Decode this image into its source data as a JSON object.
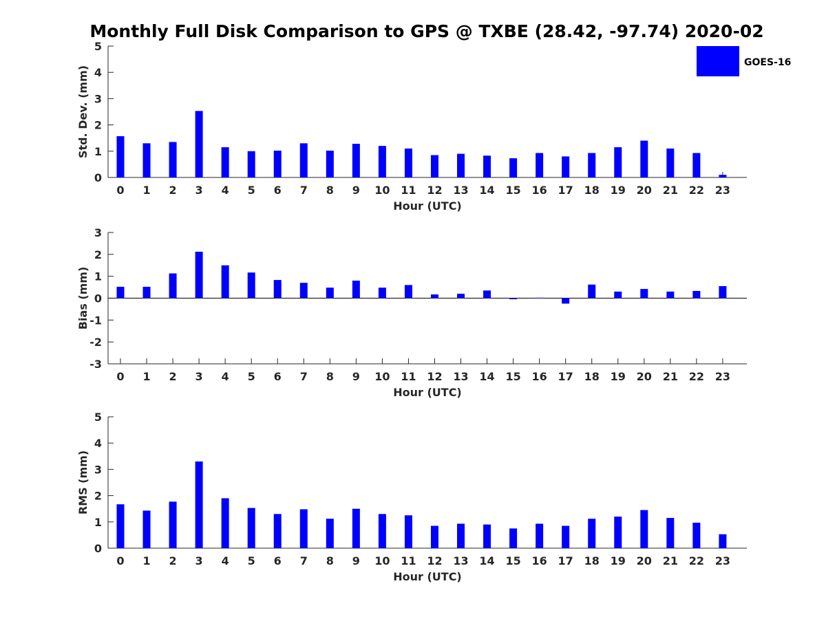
{
  "colors": {
    "series": "#0000ff",
    "axis": "#262626",
    "background": "#ffffff"
  },
  "chart_data": {
    "type": "bar",
    "title": "Monthly Full Disk Comparison to GPS @ TXBE (28.42, -97.74) 2020-02",
    "legend": {
      "entries": [
        "GOES-16"
      ],
      "placement": "top-right"
    },
    "series_name": "GOES-16",
    "categories": [
      "0",
      "1",
      "2",
      "3",
      "4",
      "5",
      "6",
      "7",
      "8",
      "9",
      "10",
      "11",
      "12",
      "13",
      "14",
      "15",
      "16",
      "17",
      "18",
      "19",
      "20",
      "21",
      "22",
      "23"
    ],
    "panels": [
      {
        "ylabel": "Std. Dev. (mm)",
        "xlabel": "Hour (UTC)",
        "ylim": [
          0,
          5
        ],
        "yticks": [
          "0",
          "1",
          "2",
          "3",
          "4",
          "5"
        ],
        "grid": false,
        "values": [
          1.57,
          1.3,
          1.35,
          2.53,
          1.15,
          1.0,
          1.02,
          1.3,
          1.02,
          1.28,
          1.2,
          1.1,
          0.85,
          0.9,
          0.83,
          0.73,
          0.93,
          0.8,
          0.93,
          1.15,
          1.4,
          1.1,
          0.93,
          0.1
        ]
      },
      {
        "ylabel": "Bias (mm)",
        "xlabel": "Hour (UTC)",
        "ylim": [
          -3,
          3
        ],
        "yticks": [
          "-3",
          "-2",
          "-1",
          "0",
          "1",
          "2",
          "3"
        ],
        "grid": false,
        "values": [
          0.52,
          0.52,
          1.13,
          2.12,
          1.5,
          1.17,
          0.83,
          0.7,
          0.48,
          0.8,
          0.48,
          0.6,
          0.17,
          0.2,
          0.35,
          -0.05,
          0.02,
          -0.25,
          0.62,
          0.3,
          0.42,
          0.3,
          0.33,
          0.55
        ]
      },
      {
        "ylabel": "RMS (mm)",
        "xlabel": "Hour (UTC)",
        "ylim": [
          0,
          5
        ],
        "yticks": [
          "0",
          "1",
          "2",
          "3",
          "4",
          "5"
        ],
        "grid": false,
        "values": [
          1.67,
          1.43,
          1.77,
          3.3,
          1.9,
          1.53,
          1.3,
          1.48,
          1.12,
          1.5,
          1.3,
          1.25,
          0.85,
          0.93,
          0.9,
          0.75,
          0.93,
          0.85,
          1.12,
          1.2,
          1.45,
          1.15,
          0.97,
          0.53
        ]
      }
    ]
  }
}
